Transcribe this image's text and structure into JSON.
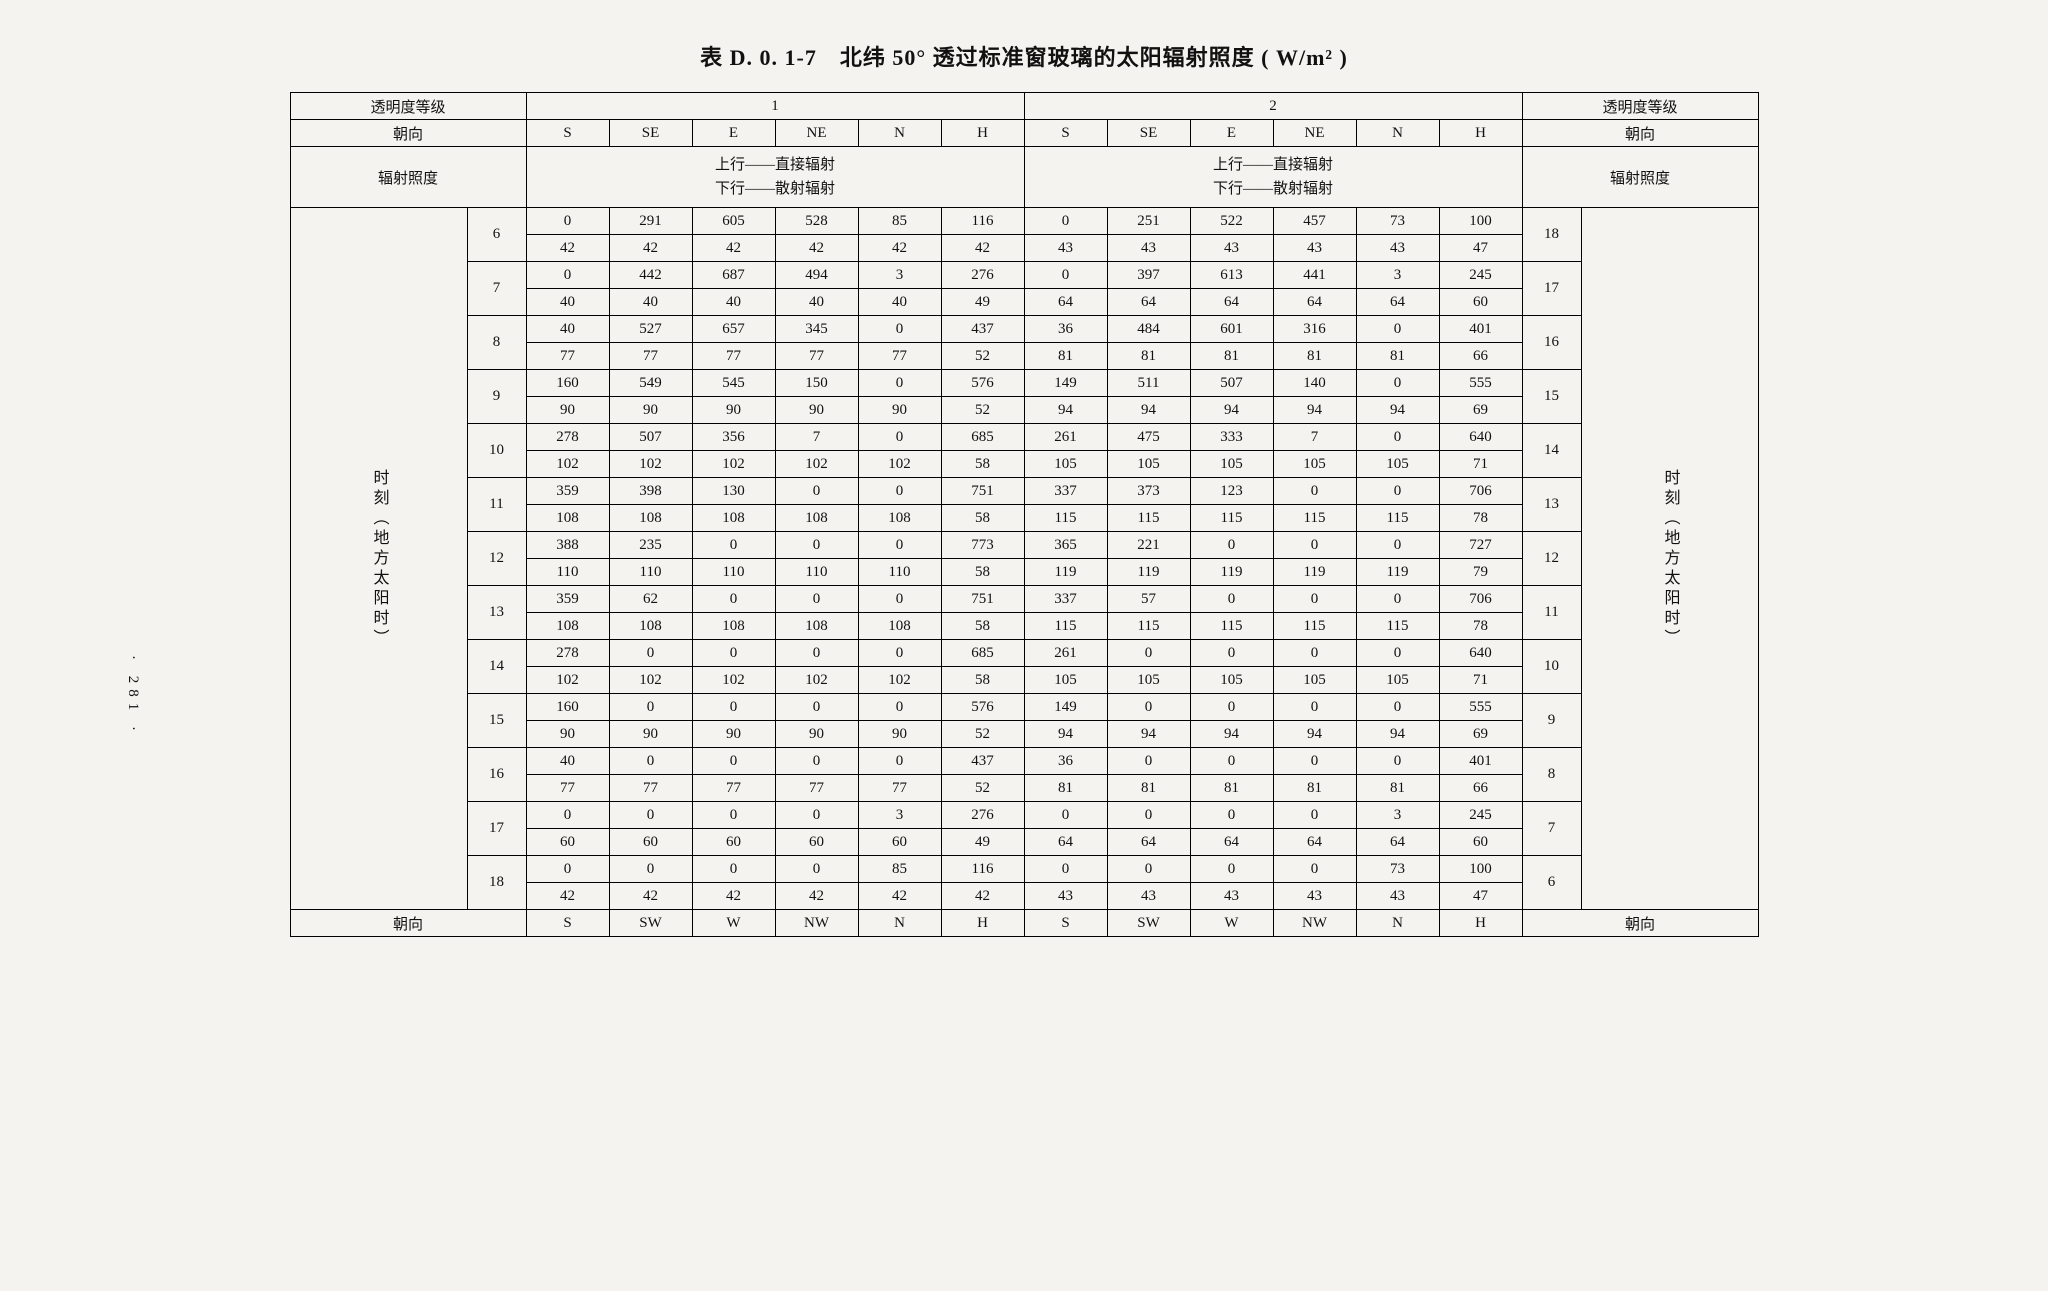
{
  "title": "表 D. 0. 1-7　北纬 50° 透过标准窗玻璃的太阳辐射照度 ( W/m² )",
  "page_number": "· 281 ·",
  "header": {
    "transparency_label": "透明度等级",
    "orientation_label": "朝向",
    "irradiance_label": "辐射照度",
    "group1": "1",
    "group2": "2",
    "dirs_top": [
      "S",
      "SE",
      "E",
      "NE",
      "N",
      "H"
    ],
    "dirs_bottom": [
      "S",
      "SW",
      "W",
      "NW",
      "N",
      "H"
    ],
    "subhead_line1": "上行——直接辐射",
    "subhead_line2": "下行——散射辐射",
    "vert_label": "时刻（地方太阳时）"
  },
  "hours_left": [
    6,
    7,
    8,
    9,
    10,
    11,
    12,
    13,
    14,
    15,
    16,
    17,
    18
  ],
  "hours_right": [
    18,
    17,
    16,
    15,
    14,
    13,
    12,
    11,
    10,
    9,
    8,
    7,
    6
  ],
  "rows": [
    {
      "g1": {
        "d": [
          0,
          291,
          605,
          528,
          85,
          116
        ],
        "s": [
          42,
          42,
          42,
          42,
          42,
          42
        ]
      },
      "g2": {
        "d": [
          0,
          251,
          522,
          457,
          73,
          100
        ],
        "s": [
          43,
          43,
          43,
          43,
          43,
          47
        ]
      }
    },
    {
      "g1": {
        "d": [
          0,
          442,
          687,
          494,
          3,
          276
        ],
        "s": [
          40,
          40,
          40,
          40,
          40,
          49
        ]
      },
      "g2": {
        "d": [
          0,
          397,
          613,
          441,
          3,
          245
        ],
        "s": [
          64,
          64,
          64,
          64,
          64,
          60
        ]
      }
    },
    {
      "g1": {
        "d": [
          40,
          527,
          657,
          345,
          0,
          437
        ],
        "s": [
          77,
          77,
          77,
          77,
          77,
          52
        ]
      },
      "g2": {
        "d": [
          36,
          484,
          601,
          316,
          0,
          401
        ],
        "s": [
          81,
          81,
          81,
          81,
          81,
          66
        ]
      }
    },
    {
      "g1": {
        "d": [
          160,
          549,
          545,
          150,
          0,
          576
        ],
        "s": [
          90,
          90,
          90,
          90,
          90,
          52
        ]
      },
      "g2": {
        "d": [
          149,
          511,
          507,
          140,
          0,
          555
        ],
        "s": [
          94,
          94,
          94,
          94,
          94,
          69
        ]
      }
    },
    {
      "g1": {
        "d": [
          278,
          507,
          356,
          7,
          0,
          685
        ],
        "s": [
          102,
          102,
          102,
          102,
          102,
          58
        ]
      },
      "g2": {
        "d": [
          261,
          475,
          333,
          7,
          0,
          640
        ],
        "s": [
          105,
          105,
          105,
          105,
          105,
          71
        ]
      }
    },
    {
      "g1": {
        "d": [
          359,
          398,
          130,
          0,
          0,
          751
        ],
        "s": [
          108,
          108,
          108,
          108,
          108,
          58
        ]
      },
      "g2": {
        "d": [
          337,
          373,
          123,
          0,
          0,
          706
        ],
        "s": [
          115,
          115,
          115,
          115,
          115,
          78
        ]
      }
    },
    {
      "g1": {
        "d": [
          388,
          235,
          0,
          0,
          0,
          773
        ],
        "s": [
          110,
          110,
          110,
          110,
          110,
          58
        ]
      },
      "g2": {
        "d": [
          365,
          221,
          0,
          0,
          0,
          727
        ],
        "s": [
          119,
          119,
          119,
          119,
          119,
          79
        ]
      }
    },
    {
      "g1": {
        "d": [
          359,
          62,
          0,
          0,
          0,
          751
        ],
        "s": [
          108,
          108,
          108,
          108,
          108,
          58
        ]
      },
      "g2": {
        "d": [
          337,
          57,
          0,
          0,
          0,
          706
        ],
        "s": [
          115,
          115,
          115,
          115,
          115,
          78
        ]
      }
    },
    {
      "g1": {
        "d": [
          278,
          0,
          0,
          0,
          0,
          685
        ],
        "s": [
          102,
          102,
          102,
          102,
          102,
          58
        ]
      },
      "g2": {
        "d": [
          261,
          0,
          0,
          0,
          0,
          640
        ],
        "s": [
          105,
          105,
          105,
          105,
          105,
          71
        ]
      }
    },
    {
      "g1": {
        "d": [
          160,
          0,
          0,
          0,
          0,
          576
        ],
        "s": [
          90,
          90,
          90,
          90,
          90,
          52
        ]
      },
      "g2": {
        "d": [
          149,
          0,
          0,
          0,
          0,
          555
        ],
        "s": [
          94,
          94,
          94,
          94,
          94,
          69
        ]
      }
    },
    {
      "g1": {
        "d": [
          40,
          0,
          0,
          0,
          0,
          437
        ],
        "s": [
          77,
          77,
          77,
          77,
          77,
          52
        ]
      },
      "g2": {
        "d": [
          36,
          0,
          0,
          0,
          0,
          401
        ],
        "s": [
          81,
          81,
          81,
          81,
          81,
          66
        ]
      }
    },
    {
      "g1": {
        "d": [
          0,
          0,
          0,
          0,
          3,
          276
        ],
        "s": [
          60,
          60,
          60,
          60,
          60,
          49
        ]
      },
      "g2": {
        "d": [
          0,
          0,
          0,
          0,
          3,
          245
        ],
        "s": [
          64,
          64,
          64,
          64,
          64,
          60
        ]
      }
    },
    {
      "g1": {
        "d": [
          0,
          0,
          0,
          0,
          85,
          116
        ],
        "s": [
          42,
          42,
          42,
          42,
          42,
          42
        ]
      },
      "g2": {
        "d": [
          0,
          0,
          0,
          0,
          73,
          100
        ],
        "s": [
          43,
          43,
          43,
          43,
          43,
          47
        ]
      }
    }
  ]
}
